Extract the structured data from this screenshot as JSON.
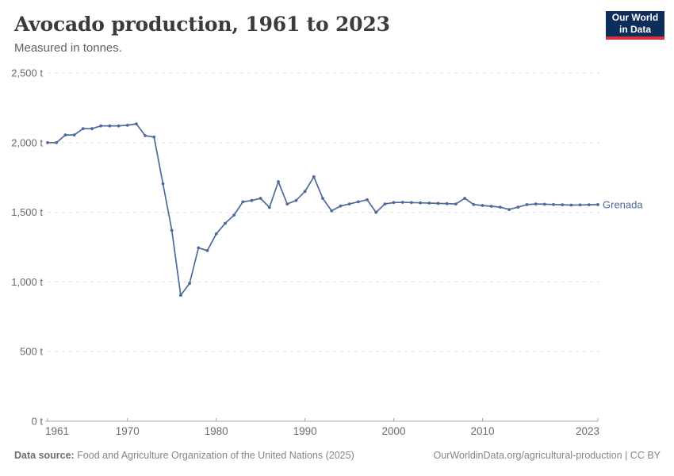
{
  "header": {
    "title": "Avocado production, 1961 to 2023",
    "subtitle": "Measured in tonnes.",
    "logo": {
      "line1": "Our World",
      "line2": "in Data"
    }
  },
  "chart_data": {
    "type": "line",
    "title": "Avocado production, 1961 to 2023",
    "unit": "tonnes",
    "xlim": [
      1961,
      2023
    ],
    "ylim": [
      0,
      2500
    ],
    "x_ticks": [
      1961,
      1970,
      1980,
      1990,
      2000,
      2010,
      2023
    ],
    "y_ticks": [
      0,
      500,
      1000,
      1500,
      2000,
      2500
    ],
    "y_tick_labels": [
      "0 t",
      "500 t",
      "1,000 t",
      "1,500 t",
      "2,000 t",
      "2,500 t"
    ],
    "grid": "dashed-horizontal",
    "legend_position": "end-of-line",
    "series": [
      {
        "name": "Grenada",
        "color": "#4C6A9C",
        "x": [
          1961,
          1962,
          1963,
          1964,
          1965,
          1966,
          1967,
          1968,
          1969,
          1970,
          1971,
          1972,
          1973,
          1974,
          1975,
          1976,
          1977,
          1978,
          1979,
          1980,
          1981,
          1982,
          1983,
          1984,
          1985,
          1986,
          1987,
          1988,
          1989,
          1990,
          1991,
          1992,
          1993,
          1994,
          1995,
          1996,
          1997,
          1998,
          1999,
          2000,
          2001,
          2002,
          2003,
          2004,
          2005,
          2006,
          2007,
          2008,
          2009,
          2010,
          2011,
          2012,
          2013,
          2014,
          2015,
          2016,
          2017,
          2018,
          2019,
          2020,
          2021,
          2022,
          2023
        ],
        "values": [
          2000,
          2000,
          2055,
          2055,
          2100,
          2100,
          2120,
          2120,
          2120,
          2125,
          2135,
          2050,
          2040,
          1705,
          1370,
          905,
          990,
          1245,
          1225,
          1345,
          1420,
          1480,
          1575,
          1585,
          1600,
          1535,
          1720,
          1560,
          1585,
          1650,
          1755,
          1600,
          1510,
          1545,
          1560,
          1575,
          1590,
          1500,
          1560,
          1570,
          1572,
          1570,
          1568,
          1566,
          1564,
          1562,
          1560,
          1600,
          1556,
          1549,
          1543,
          1537,
          1520,
          1537,
          1555,
          1560,
          1558,
          1556,
          1554,
          1552,
          1553,
          1554,
          1555
        ]
      }
    ]
  },
  "footer": {
    "source_label": "Data source:",
    "source_text": "Food and Agriculture Organization of the United Nations (2025)",
    "right_text": "OurWorldinData.org/agricultural-production | CC BY"
  },
  "colors": {
    "series_blue": "#4C6A9C",
    "logo_navy": "#0d2d5a",
    "logo_red": "#d7333f",
    "grid_gray": "#dcdcdc",
    "axis_gray": "#a5a5a5",
    "tick_text_gray": "#6b6b6b",
    "title_gray": "#3b3b3b",
    "subtitle_gray": "#616161"
  }
}
